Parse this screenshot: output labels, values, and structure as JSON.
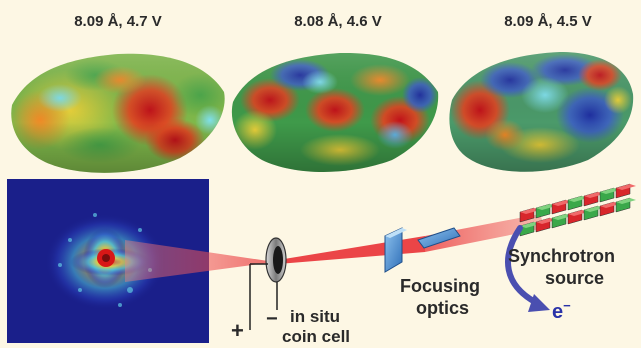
{
  "panels": [
    {
      "label": "8.09 Å, 4.7 V"
    },
    {
      "label": "8.08 Å, 4.6 V"
    },
    {
      "label": "8.09 Å, 4.5 V"
    }
  ],
  "setup": {
    "coin_cell_label_line1": "in situ",
    "coin_cell_label_line2": "coin cell",
    "plus": "+",
    "minus": "−",
    "optics_label_line1": "Focusing",
    "optics_label_line2": "optics",
    "source_label_line1": "Synchrotron",
    "source_label_line2": "source",
    "electron_symbol": "e",
    "electron_superscript": "−"
  },
  "colors": {
    "background": "#fdf7e4",
    "beam": "#e8262b",
    "electron_arrow": "#4a4fb0",
    "detector_bg": "#1a1f8a"
  }
}
